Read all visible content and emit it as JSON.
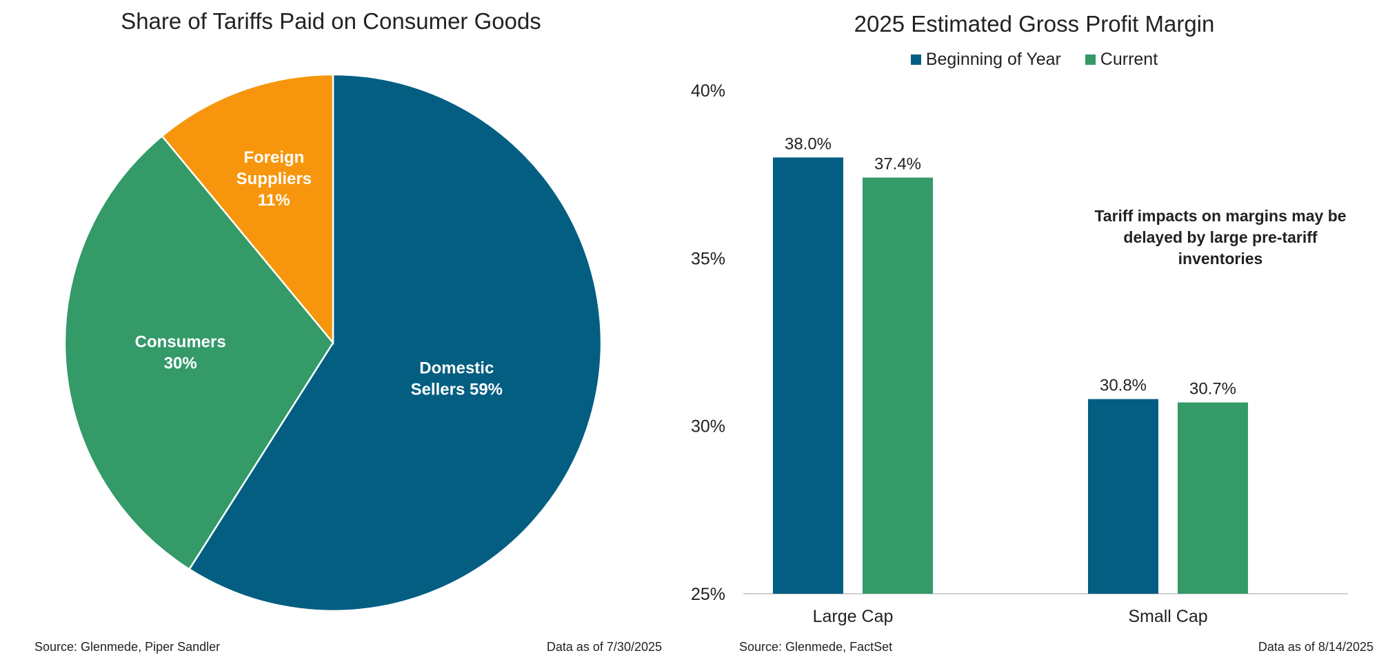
{
  "left_panel": {
    "source": "Source: Glenmede, Piper Sandler",
    "data_as_of": "Data as of 7/30/2025"
  },
  "right_panel": {
    "note": "Tariff impacts on margins may be delayed by large pre-tariff inventories",
    "source": "Source: Glenmede, FactSet",
    "data_as_of": "Data as of 8/14/2025"
  },
  "chart_data": [
    {
      "type": "pie",
      "title": "Share of Tariffs Paid on Consumer Goods",
      "slices": [
        {
          "label_lines": [
            "Domestic",
            "Sellers 59%"
          ],
          "value": 59,
          "color": "#035E82"
        },
        {
          "label_lines": [
            "Consumers",
            "30%"
          ],
          "value": 30,
          "color": "#339A68"
        },
        {
          "label_lines": [
            "Foreign",
            "Suppliers",
            "11%"
          ],
          "value": 11,
          "color": "#F7960C"
        }
      ],
      "start": "12 o'clock, clockwise"
    },
    {
      "type": "bar",
      "title": "2025 Estimated Gross Profit Margin",
      "categories": [
        "Large Cap",
        "Small Cap"
      ],
      "series": [
        {
          "name": "Beginning of Year",
          "values": [
            38.0,
            30.8
          ],
          "labels": [
            "38.0%",
            "30.8%"
          ],
          "color": "#035E82"
        },
        {
          "name": "Current",
          "values": [
            37.4,
            30.7
          ],
          "labels": [
            "37.4%",
            "30.7%"
          ],
          "color": "#339A68"
        }
      ],
      "ylim": [
        25,
        40
      ],
      "yticks": [
        25,
        30,
        35,
        40
      ],
      "ytick_labels": [
        "25%",
        "30%",
        "35%",
        "40%"
      ],
      "legend": "top-center",
      "grid": false
    }
  ]
}
